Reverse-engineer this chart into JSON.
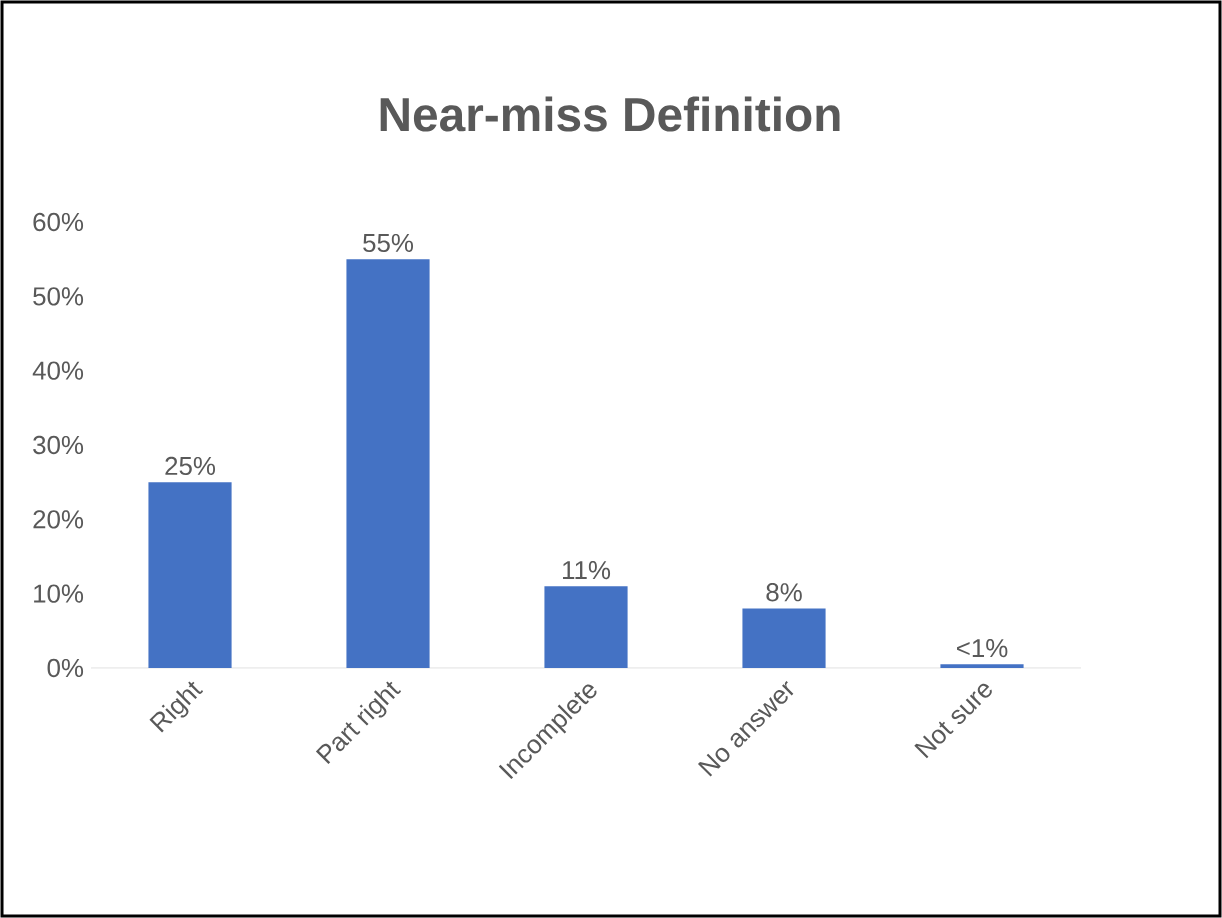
{
  "chart_data": {
    "type": "bar",
    "title": "Near-miss Definition",
    "categories": [
      "Right",
      "Part right",
      "Incomplete",
      "No answer",
      "Not sure"
    ],
    "values": [
      25,
      55,
      11,
      8,
      0.5
    ],
    "value_labels": [
      "25%",
      "55%",
      "11%",
      "8%",
      "<1%"
    ],
    "color": "#4472c4",
    "ylim": [
      0,
      60
    ],
    "yticks": [
      {
        "value": 0,
        "label": "0%"
      },
      {
        "value": 10,
        "label": "10%"
      },
      {
        "value": 20,
        "label": "20%"
      },
      {
        "value": 30,
        "label": "30%"
      },
      {
        "value": 40,
        "label": "40%"
      },
      {
        "value": 50,
        "label": "50%"
      },
      {
        "value": 60,
        "label": "60%"
      }
    ]
  }
}
